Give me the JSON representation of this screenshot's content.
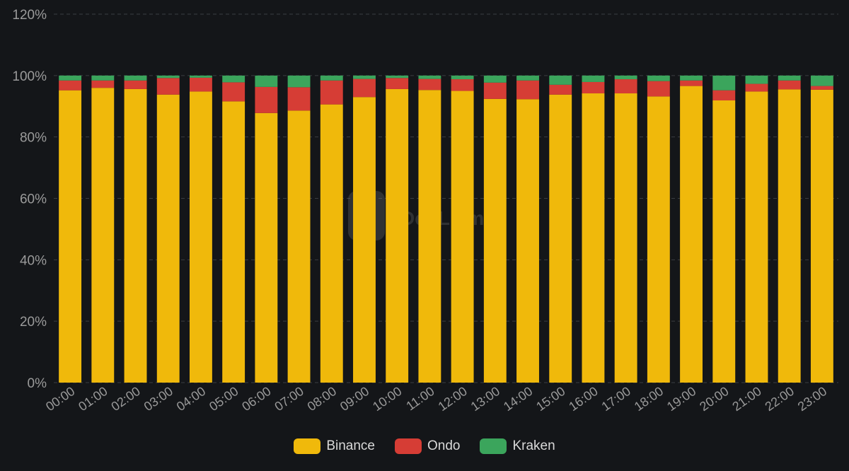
{
  "colors": {
    "background": "#141619",
    "grid": "#3a3d42",
    "axis_text": "#9a9a9a"
  },
  "watermark": {
    "text": "DefiLlama"
  },
  "chart_data": {
    "type": "bar",
    "stacked": true,
    "categories": [
      "00:00",
      "01:00",
      "02:00",
      "03:00",
      "04:00",
      "05:00",
      "06:00",
      "07:00",
      "08:00",
      "09:00",
      "10:00",
      "11:00",
      "12:00",
      "13:00",
      "14:00",
      "15:00",
      "16:00",
      "17:00",
      "18:00",
      "19:00",
      "20:00",
      "21:00",
      "22:00",
      "23:00"
    ],
    "series": [
      {
        "name": "Binance",
        "color": "#f0b90b",
        "values": [
          95.2,
          96.0,
          95.6,
          93.8,
          94.8,
          91.6,
          87.8,
          88.6,
          90.6,
          93.0,
          95.6,
          95.3,
          95.0,
          92.4,
          92.3,
          93.8,
          94.2,
          94.2,
          93.2,
          96.6,
          91.9,
          94.8,
          95.5,
          95.4
        ]
      },
      {
        "name": "Ondo",
        "color": "#d63d35",
        "values": [
          3.2,
          2.4,
          2.8,
          5.4,
          4.5,
          6.2,
          8.5,
          7.6,
          7.8,
          5.9,
          3.6,
          3.6,
          3.8,
          5.3,
          6.1,
          3.2,
          3.7,
          4.6,
          5.0,
          1.8,
          3.3,
          2.5,
          2.9,
          1.2
        ]
      },
      {
        "name": "Kraken",
        "color": "#3ba55c",
        "values": [
          1.6,
          1.6,
          1.6,
          0.8,
          0.7,
          2.2,
          3.7,
          3.8,
          1.6,
          1.1,
          0.8,
          1.1,
          1.2,
          2.3,
          1.6,
          3.0,
          2.1,
          1.2,
          1.8,
          1.6,
          4.8,
          2.7,
          1.6,
          3.4
        ]
      }
    ],
    "yticks": [
      "0%",
      "20%",
      "40%",
      "60%",
      "80%",
      "100%",
      "120%"
    ],
    "ylim": [
      0,
      120
    ],
    "grid": true,
    "legend_position": "bottom-center"
  }
}
